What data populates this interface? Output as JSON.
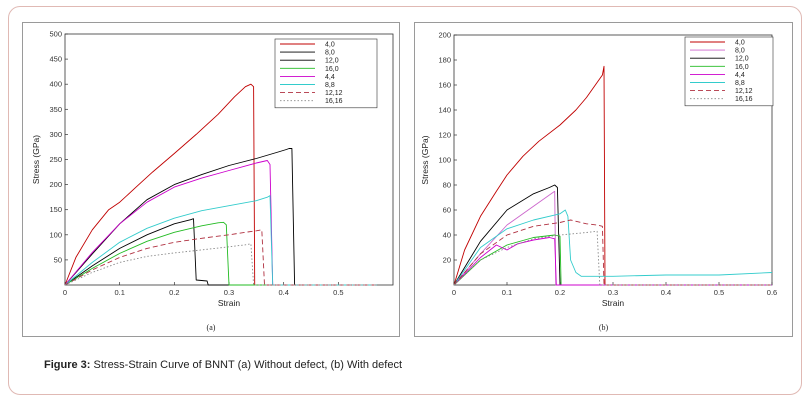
{
  "figure": {
    "caption_label": "Figure 3:",
    "caption_text": " Stress-Strain Curve of BNNT (a) Without defect, (b) With defect"
  },
  "chart_data": [
    {
      "type": "line",
      "panel_label": "(a)",
      "xlabel": "Strain",
      "ylabel": "Stress (GPa)",
      "xlim": [
        0,
        0.6
      ],
      "ylim": [
        0,
        500
      ],
      "xticks": [
        "0",
        "0.1",
        "0.2",
        "0.3",
        "0.4",
        "0.5"
      ],
      "yticks": [
        "50",
        "100",
        "150",
        "200",
        "250",
        "300",
        "350",
        "400",
        "450",
        "500"
      ],
      "grid": false,
      "legend_position": "top-right",
      "series": [
        {
          "name": "4,0",
          "color": "#c00000",
          "dash": "solid",
          "x": [
            0,
            0.02,
            0.05,
            0.08,
            0.1,
            0.13,
            0.16,
            0.2,
            0.24,
            0.28,
            0.31,
            0.33,
            0.34,
            0.345,
            0.347,
            0.35,
            0.57
          ],
          "y": [
            0,
            55,
            110,
            150,
            165,
            195,
            225,
            262,
            300,
            340,
            375,
            395,
            400,
            395,
            0,
            0,
            0
          ]
        },
        {
          "name": "8,0",
          "color": "#000000",
          "dash": "solid",
          "x": [
            0,
            0.05,
            0.1,
            0.15,
            0.2,
            0.25,
            0.3,
            0.35,
            0.39,
            0.405,
            0.41,
            0.415,
            0.42,
            0.57
          ],
          "y": [
            0,
            62,
            122,
            170,
            200,
            220,
            238,
            252,
            265,
            270,
            272,
            272,
            0,
            0
          ]
        },
        {
          "name": "12,0",
          "color": "#000000",
          "dash": "solid",
          "x": [
            0,
            0.05,
            0.1,
            0.15,
            0.2,
            0.23,
            0.235,
            0.24,
            0.26,
            0.262,
            0.57
          ],
          "y": [
            0,
            38,
            73,
            100,
            122,
            130,
            132,
            10,
            8,
            0,
            0
          ]
        },
        {
          "name": "16,0",
          "color": "#22bb22",
          "dash": "solid",
          "x": [
            0,
            0.05,
            0.1,
            0.15,
            0.2,
            0.25,
            0.28,
            0.29,
            0.295,
            0.3,
            0.57
          ],
          "y": [
            0,
            33,
            63,
            87,
            105,
            118,
            124,
            125,
            120,
            0,
            0
          ]
        },
        {
          "name": "4,4",
          "color": "#cc00cc",
          "dash": "solid",
          "x": [
            0,
            0.05,
            0.1,
            0.15,
            0.2,
            0.25,
            0.3,
            0.35,
            0.37,
            0.375,
            0.38,
            0.57
          ],
          "y": [
            0,
            65,
            122,
            165,
            195,
            213,
            228,
            243,
            248,
            240,
            0,
            0
          ]
        },
        {
          "name": "8,8",
          "color": "#33cccc",
          "dash": "solid",
          "x": [
            0,
            0.05,
            0.1,
            0.15,
            0.2,
            0.25,
            0.3,
            0.35,
            0.37,
            0.375,
            0.38,
            0.57
          ],
          "y": [
            0,
            45,
            85,
            113,
            133,
            148,
            158,
            168,
            175,
            178,
            0,
            0
          ]
        },
        {
          "name": "12,12",
          "color": "#b03040",
          "dash": "dashed",
          "x": [
            0,
            0.05,
            0.1,
            0.15,
            0.2,
            0.25,
            0.3,
            0.33,
            0.35,
            0.36,
            0.365,
            0.57
          ],
          "y": [
            0,
            30,
            55,
            73,
            85,
            93,
            100,
            105,
            108,
            110,
            0,
            0
          ]
        },
        {
          "name": "16,16",
          "color": "#888888",
          "dash": "dotted",
          "x": [
            0,
            0.05,
            0.1,
            0.15,
            0.2,
            0.25,
            0.3,
            0.33,
            0.34,
            0.345,
            0.57
          ],
          "y": [
            0,
            25,
            45,
            57,
            64,
            70,
            76,
            80,
            82,
            0,
            0
          ]
        }
      ]
    },
    {
      "type": "line",
      "panel_label": "(b)",
      "xlabel": "Strain",
      "ylabel": "Stress (GPa)",
      "xlim": [
        0,
        0.6
      ],
      "ylim": [
        0,
        200
      ],
      "xticks": [
        "0",
        "0.1",
        "0.2",
        "0.3",
        "0.4",
        "0.5",
        "0.6"
      ],
      "yticks": [
        "20",
        "40",
        "60",
        "80",
        "100",
        "120",
        "140",
        "160",
        "180",
        "200"
      ],
      "grid": false,
      "legend_position": "top-right",
      "series": [
        {
          "name": "4,0",
          "color": "#c00000",
          "dash": "solid",
          "x": [
            0,
            0.02,
            0.05,
            0.08,
            0.1,
            0.13,
            0.16,
            0.2,
            0.23,
            0.25,
            0.27,
            0.28,
            0.283,
            0.285,
            0.6
          ],
          "y": [
            0,
            28,
            55,
            75,
            88,
            103,
            115,
            128,
            140,
            150,
            162,
            168,
            175,
            0,
            0
          ]
        },
        {
          "name": "8,0",
          "color": "#cc66cc",
          "dash": "solid",
          "x": [
            0,
            0.05,
            0.1,
            0.15,
            0.18,
            0.19,
            0.192,
            0.6
          ],
          "y": [
            0,
            25,
            48,
            63,
            72,
            75,
            0,
            0
          ]
        },
        {
          "name": "12,0",
          "color": "#000000",
          "dash": "solid",
          "x": [
            0,
            0.05,
            0.1,
            0.15,
            0.18,
            0.19,
            0.195,
            0.2,
            0.6
          ],
          "y": [
            0,
            35,
            60,
            73,
            78,
            80,
            78,
            0,
            0
          ]
        },
        {
          "name": "16,0",
          "color": "#22bb22",
          "dash": "solid",
          "x": [
            0,
            0.05,
            0.1,
            0.15,
            0.19,
            0.2,
            0.202,
            0.6
          ],
          "y": [
            0,
            20,
            32,
            38,
            40,
            39,
            0,
            0
          ]
        },
        {
          "name": "4,4",
          "color": "#cc00cc",
          "dash": "solid",
          "x": [
            0,
            0.05,
            0.08,
            0.1,
            0.12,
            0.15,
            0.18,
            0.19,
            0.193,
            0.6
          ],
          "y": [
            0,
            22,
            32,
            28,
            33,
            36,
            38,
            37,
            0,
            0
          ]
        },
        {
          "name": "8,8",
          "color": "#33cccc",
          "dash": "solid",
          "x": [
            0,
            0.05,
            0.1,
            0.15,
            0.2,
            0.21,
            0.215,
            0.22,
            0.23,
            0.24,
            0.3,
            0.4,
            0.5,
            0.6
          ],
          "y": [
            0,
            30,
            45,
            52,
            57,
            60,
            55,
            20,
            10,
            7,
            7,
            8,
            8,
            10
          ]
        },
        {
          "name": "12,12",
          "color": "#b03040",
          "dash": "dashed",
          "x": [
            0,
            0.05,
            0.1,
            0.15,
            0.2,
            0.22,
            0.25,
            0.27,
            0.28,
            0.283,
            0.6
          ],
          "y": [
            0,
            25,
            40,
            47,
            50,
            52,
            49,
            48,
            47,
            0,
            0
          ]
        },
        {
          "name": "16,16",
          "color": "#888888",
          "dash": "dotted",
          "x": [
            0,
            0.05,
            0.1,
            0.15,
            0.2,
            0.25,
            0.27,
            0.275,
            0.6
          ],
          "y": [
            0,
            20,
            30,
            37,
            40,
            42,
            43,
            0,
            0
          ]
        }
      ]
    }
  ]
}
